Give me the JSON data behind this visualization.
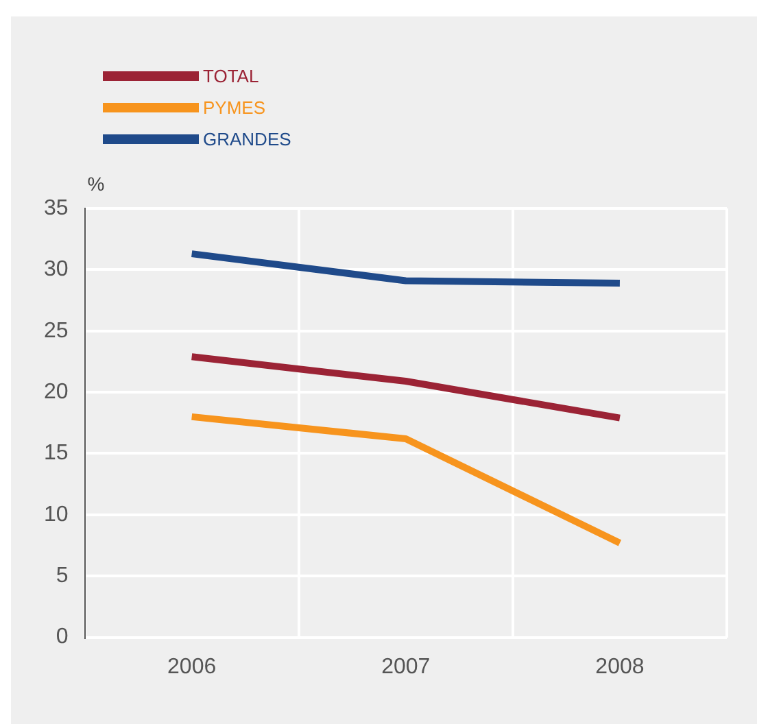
{
  "chart_data": {
    "type": "line",
    "categories": [
      "2006",
      "2007",
      "2008"
    ],
    "ylabel": "%",
    "ylim": [
      0,
      35
    ],
    "yticks": [
      0,
      5,
      10,
      15,
      20,
      25,
      30,
      35
    ],
    "grid": true,
    "legend": "top left",
    "marker": "none",
    "line_style": "solid",
    "series": [
      {
        "name": "TOTAL",
        "color": "#9b2335",
        "values": [
          22.9,
          20.9,
          17.9
        ]
      },
      {
        "name": "PYMES",
        "color": "#f7941d",
        "values": [
          18.0,
          16.2,
          7.7
        ]
      },
      {
        "name": "GRANDES",
        "color": "#1f4a8a",
        "values": [
          31.3,
          29.1,
          28.9
        ]
      }
    ]
  }
}
